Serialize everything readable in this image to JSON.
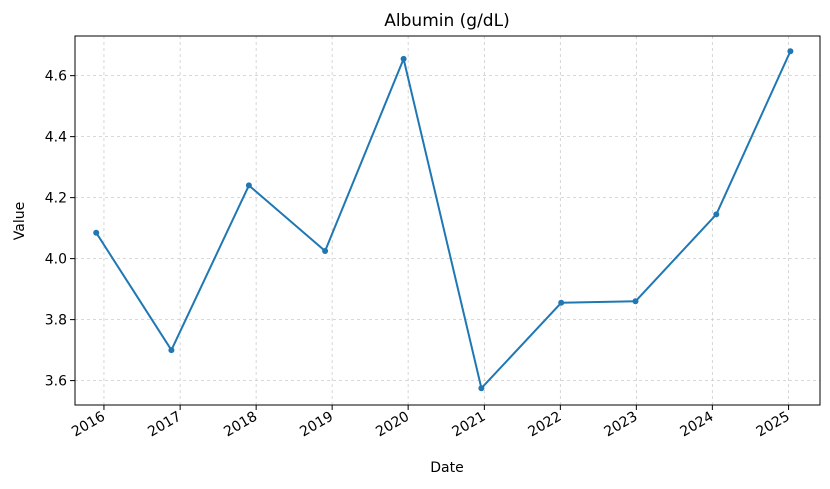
{
  "chart_data": {
    "type": "line",
    "title": "Albumin (g/dL)",
    "xlabel": "Date",
    "ylabel": "Value",
    "x_ticks": [
      "2016",
      "2017",
      "2018",
      "2019",
      "2020",
      "2021",
      "2022",
      "2023",
      "2024",
      "2025"
    ],
    "y_ticks": [
      "3.6",
      "3.8",
      "4.0",
      "4.2",
      "4.4",
      "4.6"
    ],
    "ylim": [
      3.52,
      4.73
    ],
    "xlim": [
      "2015-08-15",
      "2025-06-01"
    ],
    "grid": true,
    "grid_style": "dashed",
    "line_color": "#1f77b4",
    "marker": "circle",
    "series": [
      {
        "points": [
          {
            "date": "2015-11-25",
            "value": 4.085
          },
          {
            "date": "2016-11-20",
            "value": 3.7
          },
          {
            "date": "2017-11-27",
            "value": 4.24
          },
          {
            "date": "2018-11-28",
            "value": 4.025
          },
          {
            "date": "2019-12-10",
            "value": 4.655
          },
          {
            "date": "2020-12-18",
            "value": 3.575
          },
          {
            "date": "2022-01-05",
            "value": 3.855
          },
          {
            "date": "2022-12-28",
            "value": 3.86
          },
          {
            "date": "2024-01-20",
            "value": 4.145
          },
          {
            "date": "2025-01-10",
            "value": 4.68
          }
        ]
      }
    ]
  }
}
